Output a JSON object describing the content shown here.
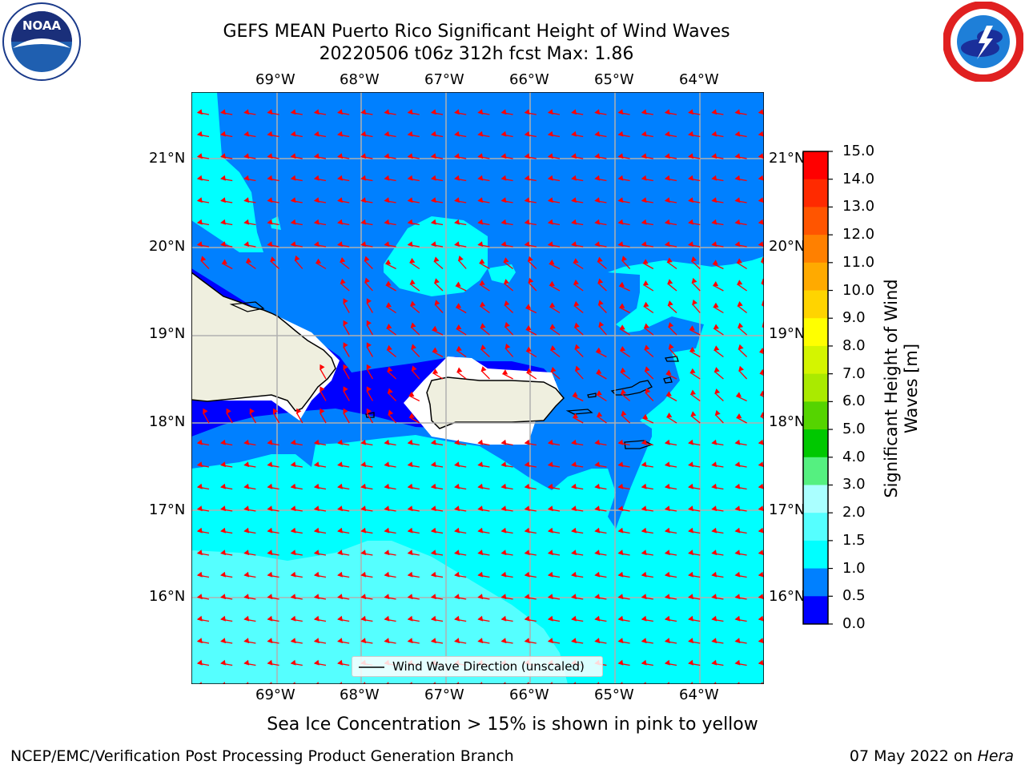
{
  "header": {
    "title_line1": "GEFS MEAN Puerto Rico Significant Height of Wind Waves",
    "title_line2": "20220506 t06z 312h fcst   Max: 1.86"
  },
  "logos": {
    "noaa": {
      "text": "NOAA",
      "icon": "noaa-logo-icon"
    },
    "nws": {
      "icon": "nws-logo-icon"
    }
  },
  "map": {
    "lon_ticks": [
      "69°W",
      "68°W",
      "67°W",
      "66°W",
      "65°W",
      "64°W"
    ],
    "lat_ticks": [
      "21°N",
      "20°N",
      "19°N",
      "18°N",
      "17°N",
      "16°N"
    ],
    "legend_label": "Wind Wave Direction (unscaled)",
    "arrow_color": "#ff0000",
    "land_color": "#efefdf"
  },
  "colorbar": {
    "label": "Significant Height of Wind Waves [m]",
    "tick_labels": [
      "15.0",
      "14.0",
      "13.0",
      "12.0",
      "11.0",
      "10.0",
      "9.0",
      "8.0",
      "7.0",
      "6.0",
      "5.0",
      "4.0",
      "3.0",
      "2.0",
      "1.5",
      "1.0",
      "0.5",
      "0.0"
    ],
    "colors_top_to_bottom": [
      "#ff0000",
      "#ff2a00",
      "#ff5500",
      "#ff8000",
      "#ffaa00",
      "#ffd400",
      "#ffff00",
      "#d4f500",
      "#aaea00",
      "#55d400",
      "#00c800",
      "#55f080",
      "#aaffff",
      "#55ffff",
      "#00ffff",
      "#0080ff",
      "#0000ff"
    ]
  },
  "footer": {
    "note": "Sea Ice Concentration > 15% is shown in pink to yellow",
    "left": "NCEP/EMC/Verification Post Processing Product Generation Branch",
    "right_prefix": "07 May 2022 on ",
    "right_host": "Hera"
  }
}
